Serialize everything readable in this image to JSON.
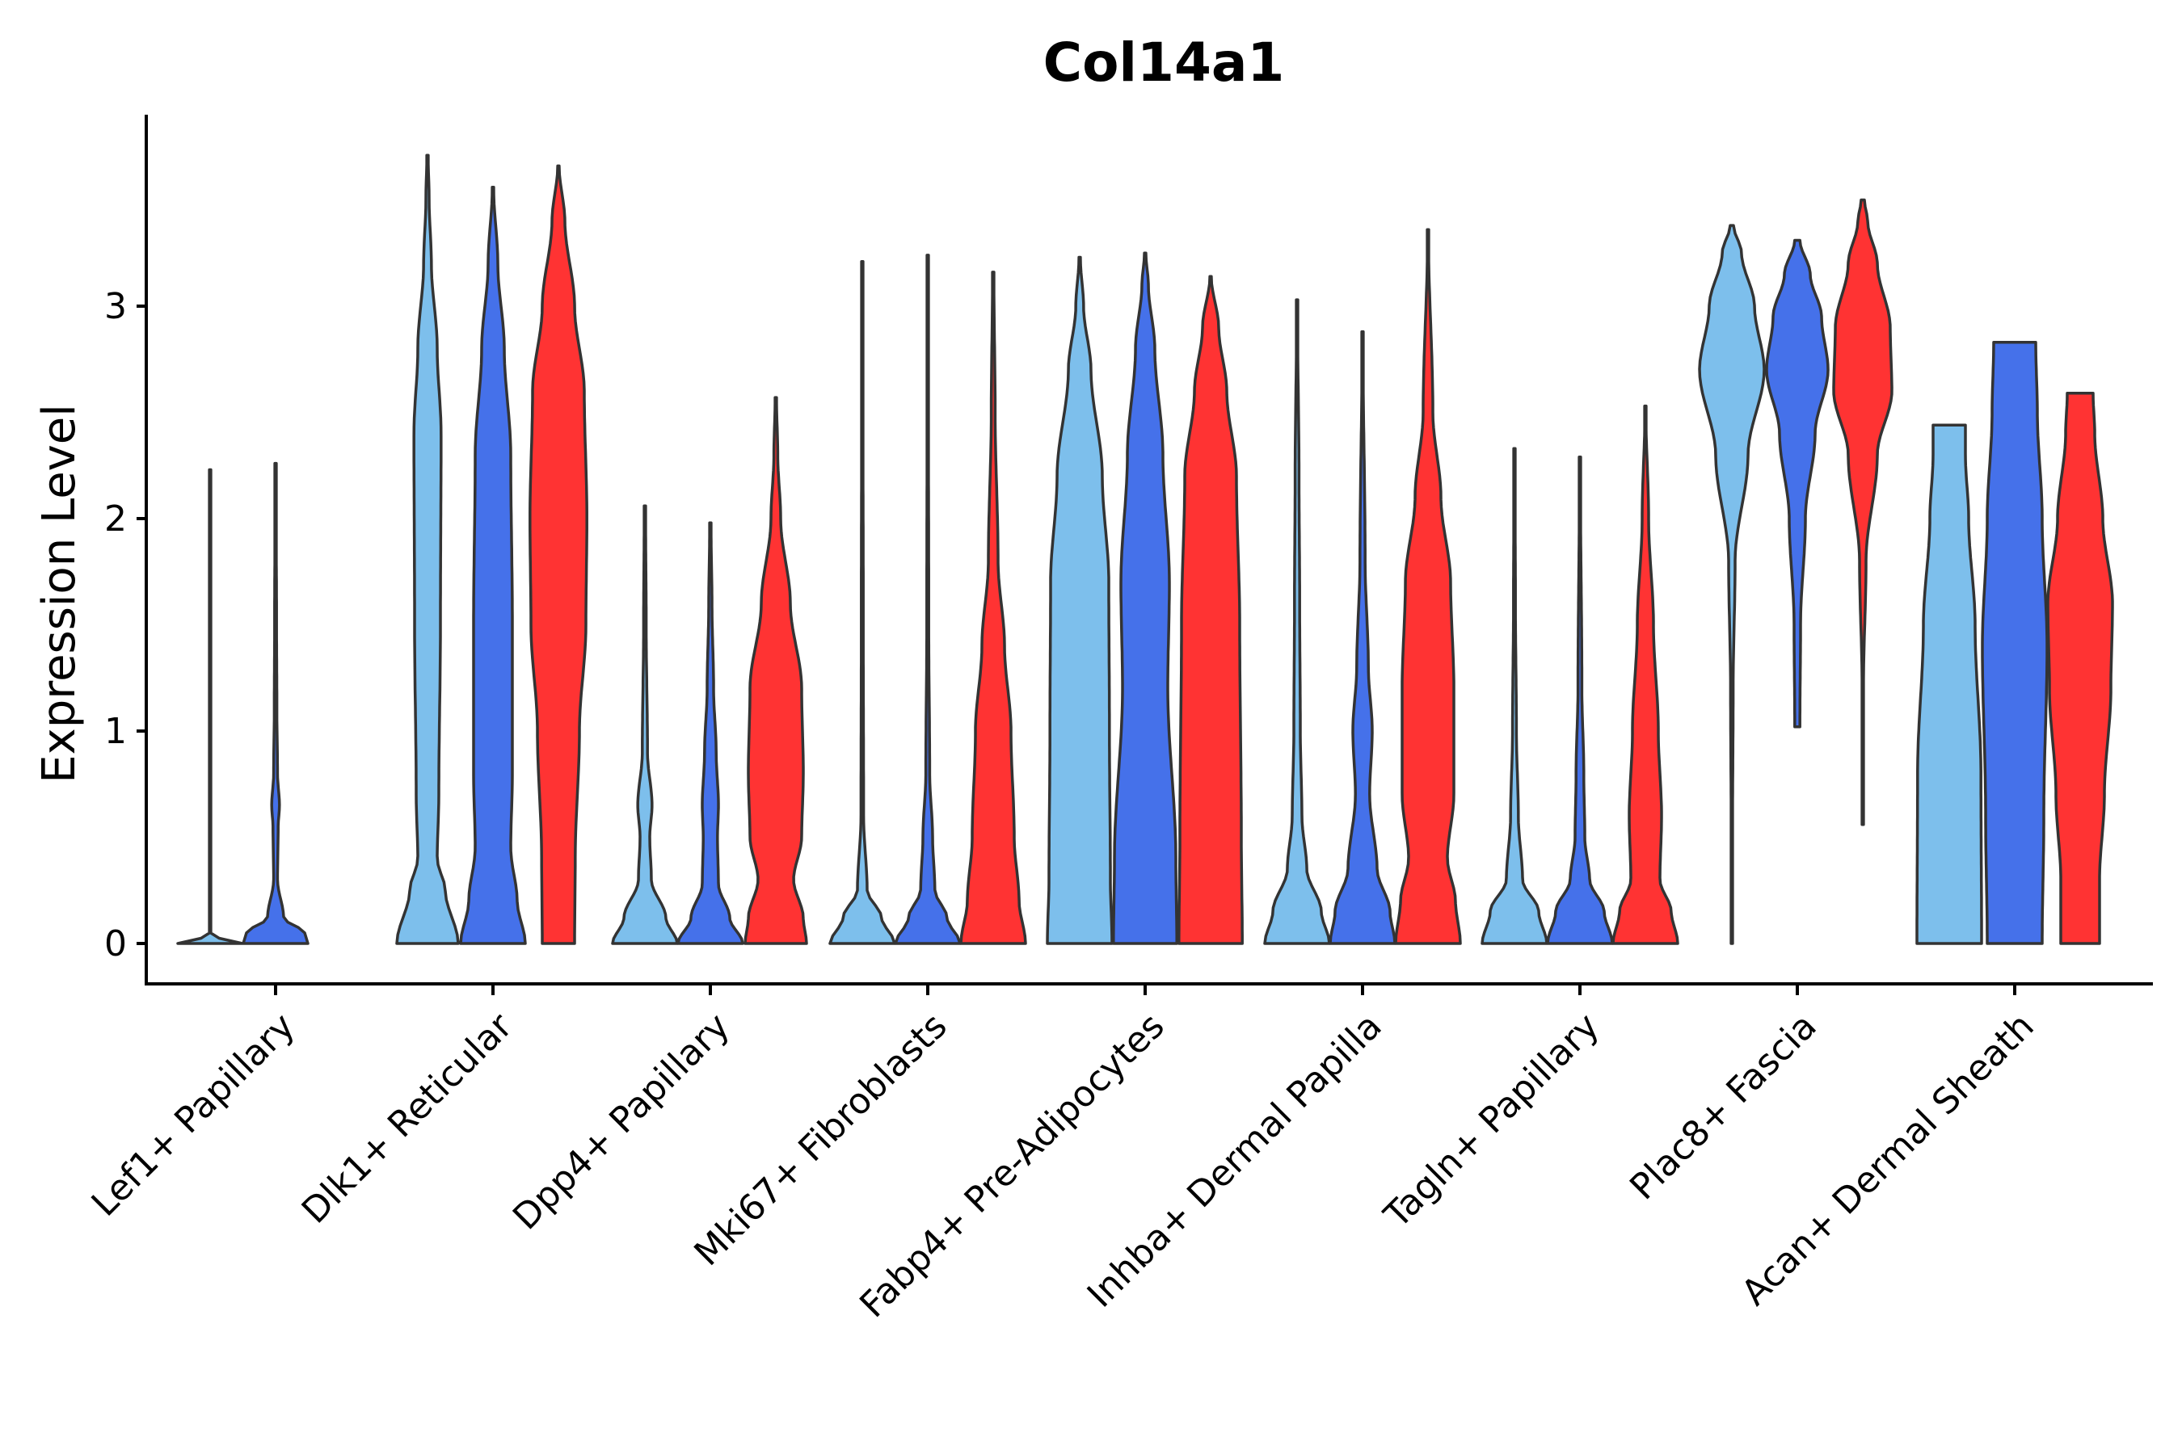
{
  "chart_data": {
    "type": "violin",
    "title": "Col14a1",
    "xlabel": "",
    "ylabel": "Expression Level",
    "ylim": [
      -0.19,
      3.9
    ],
    "yticks": [
      0,
      1,
      2,
      3
    ],
    "grid": false,
    "legend": "none",
    "series_colors": [
      "#7DBFEC",
      "#4571EA",
      "#FF3333"
    ],
    "categories": [
      "Lef1+ Papillary",
      "Dlk1+ Reticular",
      "Dpp4+ Papillary",
      "Mki67+ Fibroblasts",
      "Fabp4+ Pre-Adipocytes",
      "Inhba+ Dermal Papilla",
      "Tagln+ Papillary",
      "Plac8+ Fascia",
      "Acan+ Dermal Sheath"
    ],
    "violins": [
      [
        {
          "ymin": 0,
          "ymax": 2.23,
          "profile": [
            [
              0,
              1.0
            ],
            [
              0.02,
              0.3
            ],
            [
              0.05,
              0.02
            ],
            [
              2.23,
              0.015
            ]
          ]
        },
        {
          "ymin": 0,
          "ymax": 2.26,
          "profile": [
            [
              0,
              1.0
            ],
            [
              0.05,
              0.9
            ],
            [
              0.12,
              0.25
            ],
            [
              0.3,
              0.06
            ],
            [
              0.55,
              0.08
            ],
            [
              0.65,
              0.12
            ],
            [
              0.8,
              0.06
            ],
            [
              1.1,
              0.04
            ],
            [
              1.5,
              0.03
            ],
            [
              2.26,
              0.01
            ]
          ]
        },
        null
      ],
      [
        {
          "ymin": 0,
          "ymax": 3.71,
          "profile": [
            [
              0,
              0.95
            ],
            [
              0.25,
              0.55
            ],
            [
              0.4,
              0.3
            ],
            [
              0.7,
              0.35
            ],
            [
              1.5,
              0.4
            ],
            [
              2.4,
              0.42
            ],
            [
              2.8,
              0.3
            ],
            [
              3.2,
              0.12
            ],
            [
              3.5,
              0.05
            ],
            [
              3.71,
              0.02
            ]
          ]
        },
        {
          "ymin": 0,
          "ymax": 3.56,
          "profile": [
            [
              0,
              1.0
            ],
            [
              0.2,
              0.75
            ],
            [
              0.45,
              0.55
            ],
            [
              0.8,
              0.6
            ],
            [
              1.5,
              0.6
            ],
            [
              2.3,
              0.55
            ],
            [
              2.8,
              0.35
            ],
            [
              3.2,
              0.15
            ],
            [
              3.56,
              0.02
            ]
          ]
        },
        {
          "ymin": 0,
          "ymax": 3.66,
          "profile": [
            [
              0,
              0.5
            ],
            [
              0.4,
              0.52
            ],
            [
              1.0,
              0.65
            ],
            [
              1.5,
              0.85
            ],
            [
              2.0,
              0.88
            ],
            [
              2.6,
              0.8
            ],
            [
              3.0,
              0.5
            ],
            [
              3.4,
              0.2
            ],
            [
              3.66,
              0.02
            ]
          ]
        }
      ],
      [
        {
          "ymin": 0,
          "ymax": 2.06,
          "profile": [
            [
              0,
              1.0
            ],
            [
              0.12,
              0.65
            ],
            [
              0.3,
              0.2
            ],
            [
              0.5,
              0.15
            ],
            [
              0.65,
              0.22
            ],
            [
              0.9,
              0.08
            ],
            [
              1.5,
              0.04
            ],
            [
              2.06,
              0.02
            ]
          ]
        },
        {
          "ymin": 0,
          "ymax": 1.98,
          "profile": [
            [
              0,
              1.0
            ],
            [
              0.12,
              0.6
            ],
            [
              0.28,
              0.25
            ],
            [
              0.5,
              0.22
            ],
            [
              0.65,
              0.25
            ],
            [
              0.9,
              0.18
            ],
            [
              1.2,
              0.1
            ],
            [
              1.6,
              0.05
            ],
            [
              1.98,
              0.02
            ]
          ]
        },
        {
          "ymin": 0,
          "ymax": 2.57,
          "profile": [
            [
              0,
              0.95
            ],
            [
              0.12,
              0.85
            ],
            [
              0.3,
              0.55
            ],
            [
              0.5,
              0.8
            ],
            [
              0.8,
              0.85
            ],
            [
              1.2,
              0.8
            ],
            [
              1.6,
              0.45
            ],
            [
              2.0,
              0.15
            ],
            [
              2.3,
              0.06
            ],
            [
              2.57,
              0.02
            ]
          ]
        }
      ],
      [
        {
          "ymin": 0,
          "ymax": 3.21,
          "profile": [
            [
              0,
              1.0
            ],
            [
              0.12,
              0.6
            ],
            [
              0.25,
              0.15
            ],
            [
              0.6,
              0.04
            ],
            [
              1.5,
              0.03
            ],
            [
              3.21,
              0.01
            ]
          ]
        },
        {
          "ymin": 0,
          "ymax": 3.24,
          "profile": [
            [
              0,
              1.0
            ],
            [
              0.12,
              0.6
            ],
            [
              0.25,
              0.22
            ],
            [
              0.5,
              0.15
            ],
            [
              0.8,
              0.06
            ],
            [
              1.5,
              0.03
            ],
            [
              3.24,
              0.01
            ]
          ]
        },
        {
          "ymin": 0,
          "ymax": 3.16,
          "profile": [
            [
              0,
              1.0
            ],
            [
              0.2,
              0.8
            ],
            [
              0.5,
              0.65
            ],
            [
              1.0,
              0.55
            ],
            [
              1.4,
              0.35
            ],
            [
              1.8,
              0.15
            ],
            [
              2.5,
              0.06
            ],
            [
              3.16,
              0.02
            ]
          ]
        }
      ],
      [
        {
          "ymin": 0,
          "ymax": 3.23,
          "profile": [
            [
              0,
              1.0
            ],
            [
              0.3,
              0.95
            ],
            [
              1.0,
              0.92
            ],
            [
              1.7,
              0.9
            ],
            [
              2.2,
              0.7
            ],
            [
              2.7,
              0.35
            ],
            [
              3.0,
              0.12
            ],
            [
              3.23,
              0.02
            ]
          ]
        },
        {
          "ymin": 0,
          "ymax": 3.25,
          "profile": [
            [
              0,
              0.98
            ],
            [
              0.4,
              0.95
            ],
            [
              1.2,
              0.7
            ],
            [
              1.7,
              0.75
            ],
            [
              2.3,
              0.55
            ],
            [
              2.8,
              0.3
            ],
            [
              3.1,
              0.1
            ],
            [
              3.25,
              0.02
            ]
          ]
        },
        {
          "ymin": 0,
          "ymax": 3.14,
          "profile": [
            [
              0,
              0.98
            ],
            [
              0.5,
              0.95
            ],
            [
              1.5,
              0.9
            ],
            [
              2.2,
              0.8
            ],
            [
              2.6,
              0.5
            ],
            [
              2.9,
              0.25
            ],
            [
              3.14,
              0.02
            ]
          ]
        }
      ],
      [
        {
          "ymin": 0,
          "ymax": 3.03,
          "profile": [
            [
              0,
              1.0
            ],
            [
              0.15,
              0.75
            ],
            [
              0.35,
              0.3
            ],
            [
              0.6,
              0.15
            ],
            [
              1.0,
              0.1
            ],
            [
              1.6,
              0.08
            ],
            [
              2.2,
              0.06
            ],
            [
              3.03,
              0.01
            ]
          ]
        },
        {
          "ymin": 0,
          "ymax": 2.88,
          "profile": [
            [
              0,
              1.0
            ],
            [
              0.15,
              0.85
            ],
            [
              0.35,
              0.45
            ],
            [
              0.7,
              0.22
            ],
            [
              1.0,
              0.3
            ],
            [
              1.3,
              0.18
            ],
            [
              1.8,
              0.08
            ],
            [
              2.88,
              0.01
            ]
          ]
        },
        {
          "ymin": 0,
          "ymax": 3.36,
          "profile": [
            [
              0,
              1.0
            ],
            [
              0.2,
              0.85
            ],
            [
              0.4,
              0.6
            ],
            [
              0.7,
              0.8
            ],
            [
              1.2,
              0.8
            ],
            [
              1.7,
              0.7
            ],
            [
              2.1,
              0.4
            ],
            [
              2.5,
              0.15
            ],
            [
              3.36,
              0.01
            ]
          ]
        }
      ],
      [
        {
          "ymin": 0,
          "ymax": 2.33,
          "profile": [
            [
              0,
              1.0
            ],
            [
              0.15,
              0.75
            ],
            [
              0.3,
              0.25
            ],
            [
              0.6,
              0.12
            ],
            [
              1.0,
              0.06
            ],
            [
              1.6,
              0.03
            ],
            [
              2.33,
              0.01
            ]
          ]
        },
        {
          "ymin": 0,
          "ymax": 2.29,
          "profile": [
            [
              0,
              1.0
            ],
            [
              0.15,
              0.75
            ],
            [
              0.3,
              0.3
            ],
            [
              0.5,
              0.15
            ],
            [
              0.8,
              0.12
            ],
            [
              1.2,
              0.06
            ],
            [
              2.29,
              0.01
            ]
          ]
        },
        {
          "ymin": 0,
          "ymax": 2.53,
          "profile": [
            [
              0,
              1.0
            ],
            [
              0.15,
              0.8
            ],
            [
              0.3,
              0.45
            ],
            [
              0.6,
              0.5
            ],
            [
              1.0,
              0.4
            ],
            [
              1.5,
              0.25
            ],
            [
              2.0,
              0.1
            ],
            [
              2.53,
              0.01
            ]
          ]
        }
      ],
      [
        {
          "ymin": 0,
          "ymax": 3.38,
          "profile": [
            [
              0,
              0.005
            ],
            [
              0.5,
              0.02
            ],
            [
              1.2,
              0.04
            ],
            [
              1.8,
              0.1
            ],
            [
              2.3,
              0.5
            ],
            [
              2.7,
              1.0
            ],
            [
              3.0,
              0.7
            ],
            [
              3.25,
              0.3
            ],
            [
              3.38,
              0.05
            ]
          ]
        },
        {
          "ymin": 1.02,
          "ymax": 3.31,
          "profile": [
            [
              1.02,
              0.08
            ],
            [
              1.5,
              0.1
            ],
            [
              2.0,
              0.25
            ],
            [
              2.4,
              0.55
            ],
            [
              2.7,
              0.95
            ],
            [
              2.95,
              0.75
            ],
            [
              3.15,
              0.4
            ],
            [
              3.31,
              0.08
            ]
          ]
        },
        {
          "ymin": 0.56,
          "ymax": 3.5,
          "profile": [
            [
              0.56,
              0.005
            ],
            [
              1.2,
              0.02
            ],
            [
              1.8,
              0.1
            ],
            [
              2.3,
              0.45
            ],
            [
              2.6,
              0.9
            ],
            [
              2.9,
              0.85
            ],
            [
              3.2,
              0.45
            ],
            [
              3.4,
              0.15
            ],
            [
              3.5,
              0.05
            ]
          ]
        }
      ],
      [
        {
          "ymin": 0,
          "ymax": 2.44,
          "profile": [
            [
              0,
              1.0
            ],
            [
              0.8,
              0.98
            ],
            [
              1.5,
              0.8
            ],
            [
              2.0,
              0.6
            ],
            [
              2.3,
              0.5
            ],
            [
              2.44,
              0.5
            ]
          ]
        },
        {
          "ymin": 0,
          "ymax": 2.83,
          "profile": [
            [
              0,
              0.85
            ],
            [
              0.6,
              0.9
            ],
            [
              1.4,
              1.0
            ],
            [
              2.0,
              0.85
            ],
            [
              2.5,
              0.7
            ],
            [
              2.83,
              0.65
            ]
          ]
        },
        {
          "ymin": 0,
          "ymax": 2.59,
          "profile": [
            [
              0,
              0.6
            ],
            [
              0.3,
              0.6
            ],
            [
              0.7,
              0.75
            ],
            [
              1.2,
              0.95
            ],
            [
              1.6,
              1.0
            ],
            [
              2.0,
              0.7
            ],
            [
              2.4,
              0.45
            ],
            [
              2.59,
              0.4
            ]
          ]
        }
      ]
    ]
  }
}
